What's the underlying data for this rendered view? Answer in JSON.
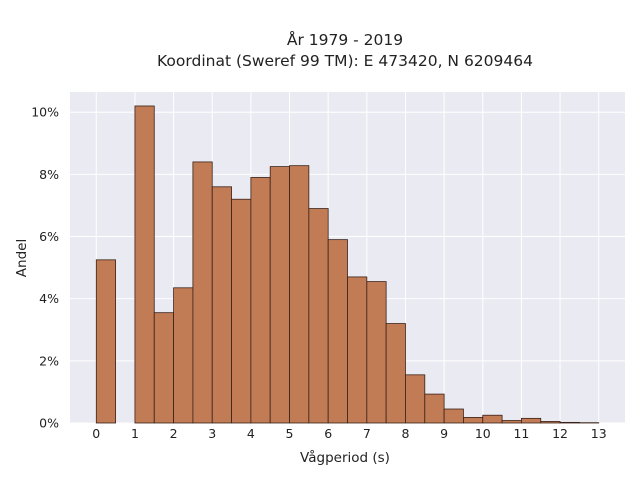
{
  "chart_data": {
    "type": "bar",
    "title_lines": [
      "År 1979 - 2019",
      "Koordinat (Sweref 99 TM): E 473420, N 6209464"
    ],
    "xlabel": "Vågperiod (s)",
    "ylabel": "Andel",
    "xlim": [
      -0.68,
      13.68
    ],
    "ylim": [
      0,
      0.1065
    ],
    "x_ticks": [
      0,
      1,
      2,
      3,
      4,
      5,
      6,
      7,
      8,
      9,
      10,
      11,
      12,
      13
    ],
    "x_tick_labels": [
      "0",
      "1",
      "2",
      "3",
      "4",
      "5",
      "6",
      "7",
      "8",
      "9",
      "10",
      "11",
      "12",
      "13"
    ],
    "y_ticks": [
      0,
      0.02,
      0.04,
      0.06,
      0.08,
      0.1
    ],
    "y_tick_labels": [
      "0%",
      "2%",
      "4%",
      "6%",
      "8%",
      "10%"
    ],
    "bin_width": 0.5,
    "bins": [
      {
        "x0": 0.0,
        "value": 0.0525
      },
      {
        "x0": 1.0,
        "value": 0.102
      },
      {
        "x0": 1.5,
        "value": 0.0355
      },
      {
        "x0": 2.0,
        "value": 0.0435
      },
      {
        "x0": 2.5,
        "value": 0.084
      },
      {
        "x0": 3.0,
        "value": 0.076
      },
      {
        "x0": 3.5,
        "value": 0.072
      },
      {
        "x0": 4.0,
        "value": 0.079
      },
      {
        "x0": 4.5,
        "value": 0.0825
      },
      {
        "x0": 5.0,
        "value": 0.0828
      },
      {
        "x0": 5.5,
        "value": 0.069
      },
      {
        "x0": 6.0,
        "value": 0.059
      },
      {
        "x0": 6.5,
        "value": 0.047
      },
      {
        "x0": 7.0,
        "value": 0.0455
      },
      {
        "x0": 7.5,
        "value": 0.032
      },
      {
        "x0": 8.0,
        "value": 0.0155
      },
      {
        "x0": 8.5,
        "value": 0.0093
      },
      {
        "x0": 9.0,
        "value": 0.0045
      },
      {
        "x0": 9.5,
        "value": 0.0018
      },
      {
        "x0": 10.0,
        "value": 0.0025
      },
      {
        "x0": 10.5,
        "value": 0.0008
      },
      {
        "x0": 11.0,
        "value": 0.0015
      },
      {
        "x0": 11.5,
        "value": 0.0005
      },
      {
        "x0": 12.0,
        "value": 0.0002
      },
      {
        "x0": 12.5,
        "value": 0.0001
      }
    ],
    "grid": true,
    "legend": "none",
    "colors": {
      "bar_fill": "#c17b55",
      "bar_edge": "#3a2218",
      "plot_background": "#eaeaf2",
      "grid": "#ffffff"
    }
  }
}
